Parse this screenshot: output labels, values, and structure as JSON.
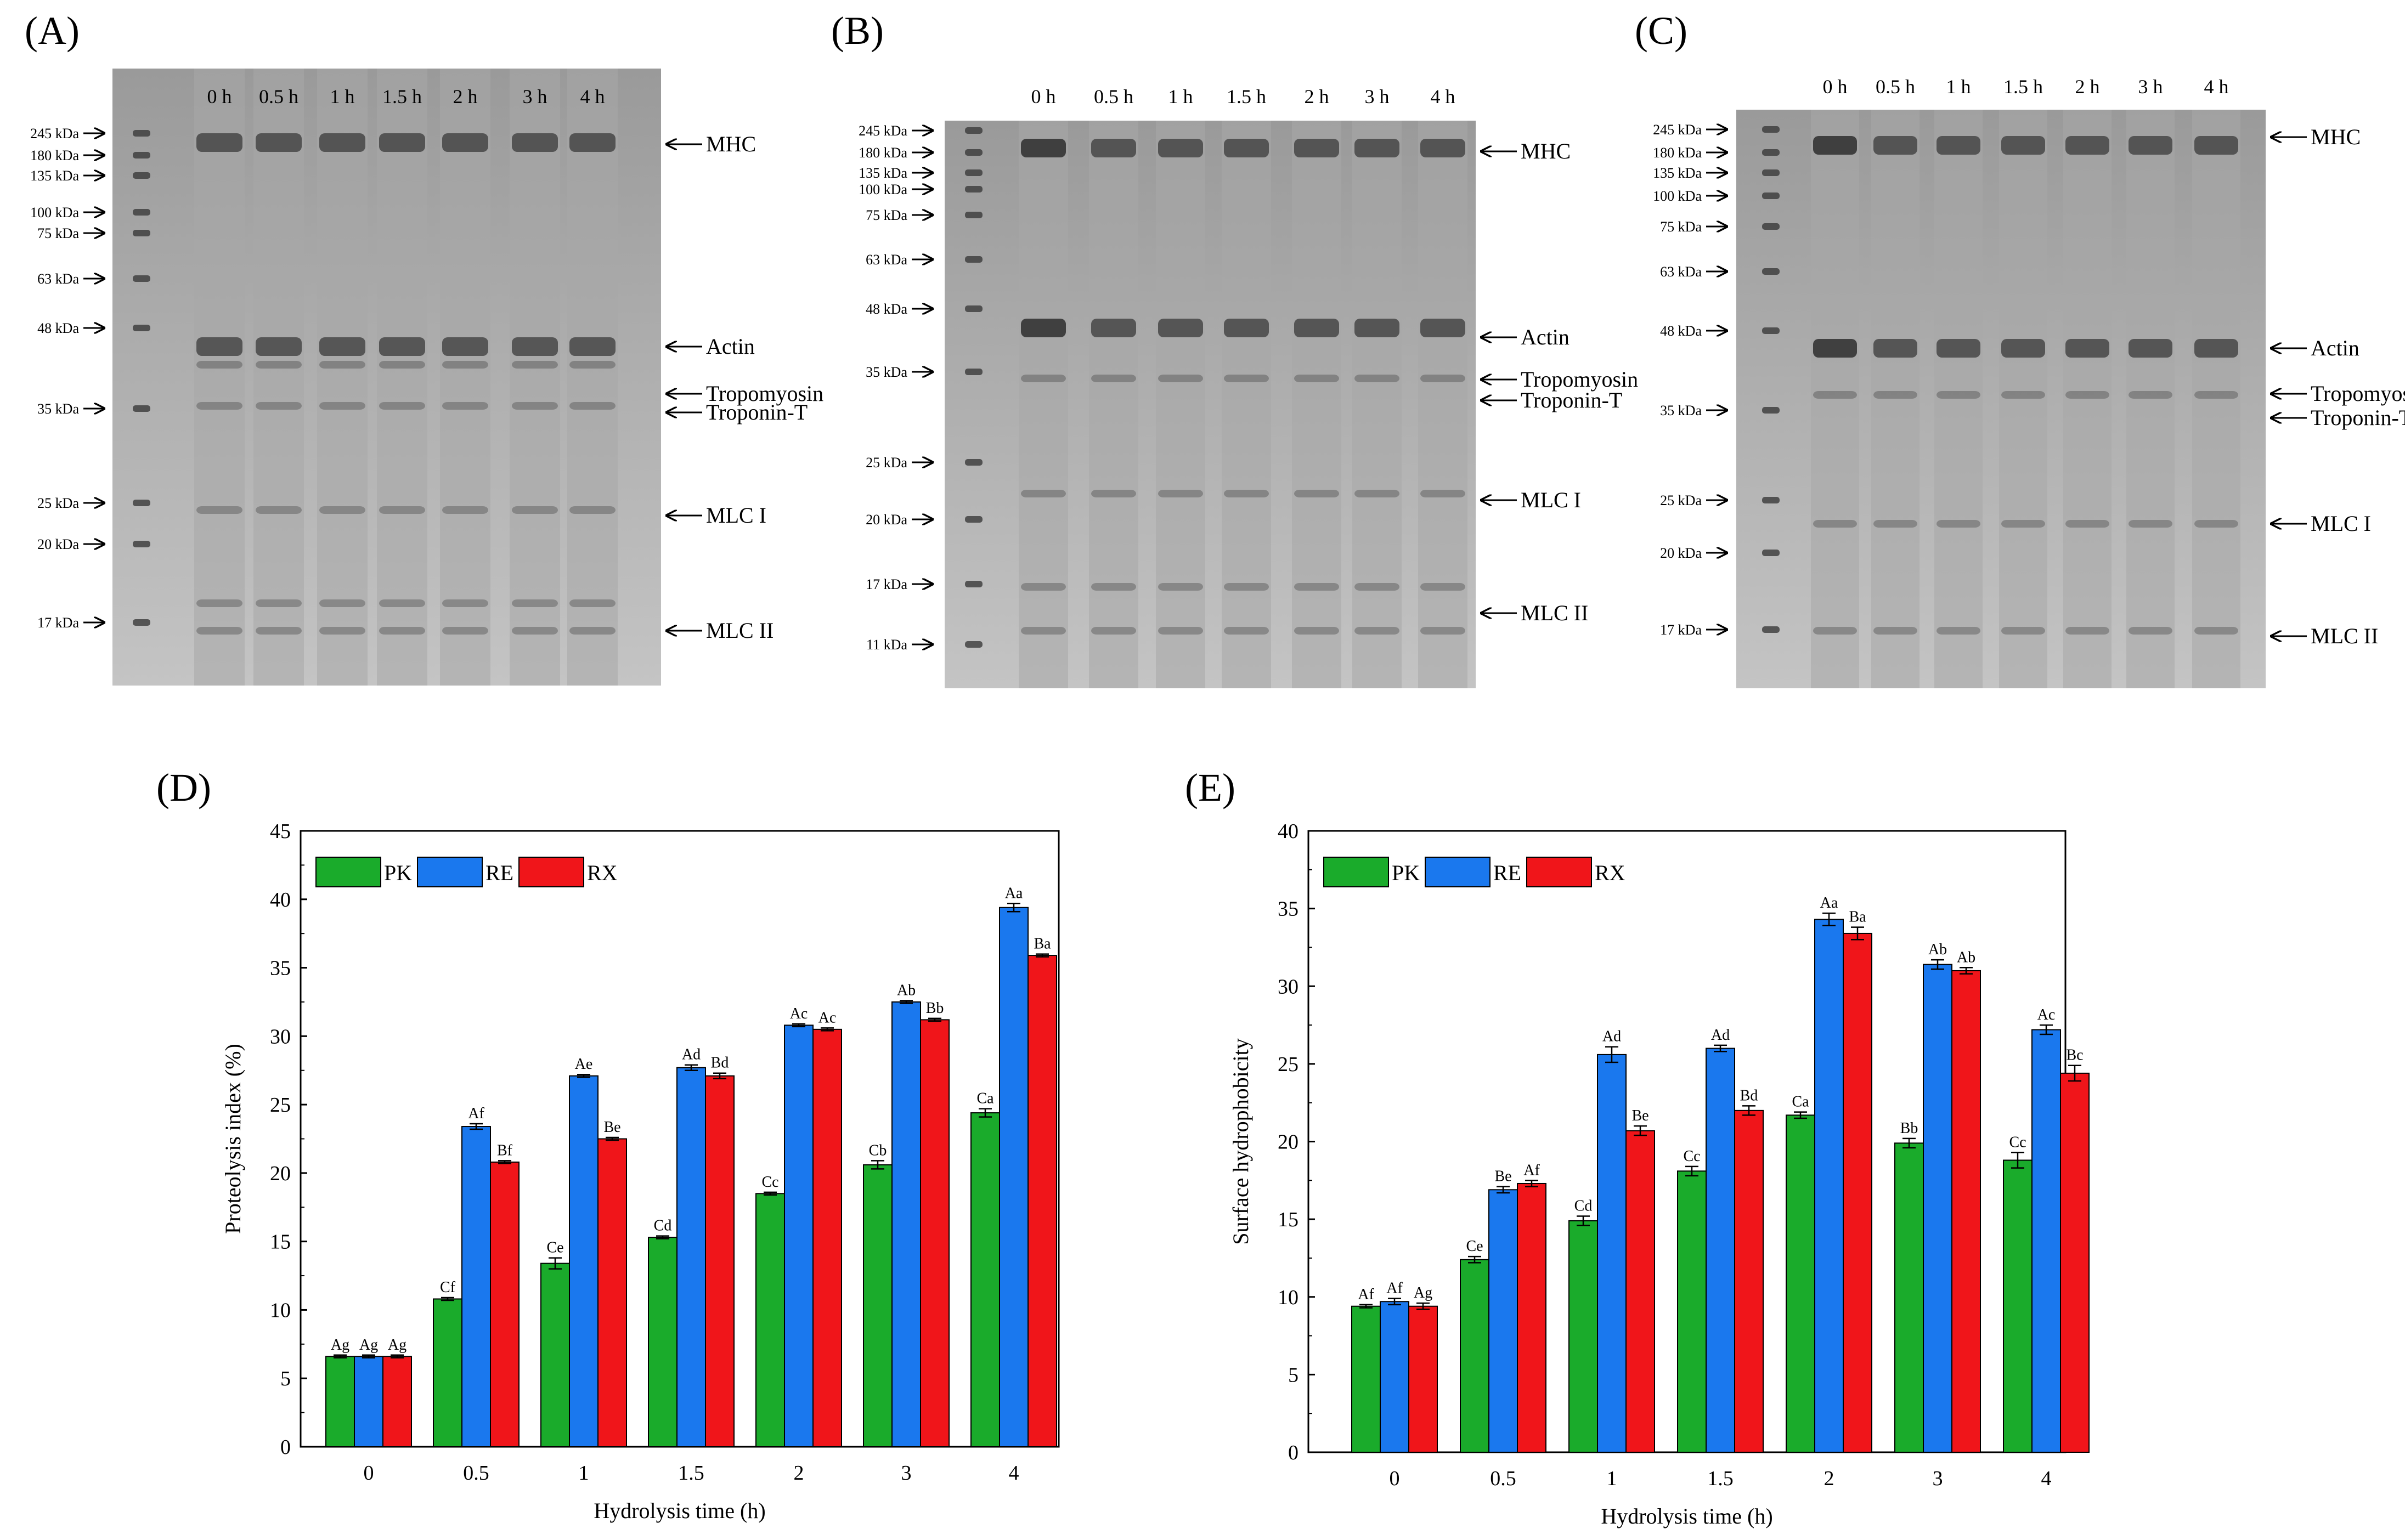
{
  "panels": {
    "A": "(A)",
    "B": "(B)",
    "C": "(C)",
    "D": "(D)",
    "E": "(E)"
  },
  "gels": [
    {
      "id": "A",
      "lanes": [
        "0 h",
        "0.5 h",
        "1 h",
        "1.5 h",
        "2 h",
        "3 h",
        "4 h"
      ],
      "markers": [
        "245 kDa",
        "180 kDa",
        "135 kDa",
        "100 kDa",
        "75 kDa",
        "63 kDa",
        "48 kDa",
        "35 kDa",
        "25 kDa",
        "20 kDa",
        "17 kDa"
      ],
      "proteins": [
        "MHC",
        "Actin",
        "Tropomyosin",
        "Troponin-T",
        "MLC I",
        "MLC II"
      ]
    },
    {
      "id": "B",
      "lanes": [
        "0 h",
        "0.5 h",
        "1 h",
        "1.5 h",
        "2 h",
        "3 h",
        "4 h"
      ],
      "markers": [
        "245 kDa",
        "180 kDa",
        "135 kDa",
        "100 kDa",
        "75 kDa",
        "63 kDa",
        "48 kDa",
        "35 kDa",
        "25 kDa",
        "20 kDa",
        "17 kDa",
        "11 kDa"
      ],
      "proteins": [
        "MHC",
        "Actin",
        "Tropomyosin",
        "Troponin-T",
        "MLC I",
        "MLC II"
      ]
    },
    {
      "id": "C",
      "lanes": [
        "0 h",
        "0.5 h",
        "1 h",
        "1.5 h",
        "2 h",
        "3 h",
        "4 h"
      ],
      "markers": [
        "245 kDa",
        "180 kDa",
        "135 kDa",
        "100 kDa",
        "75 kDa",
        "63 kDa",
        "48 kDa",
        "35 kDa",
        "25 kDa",
        "20 kDa",
        "17 kDa"
      ],
      "proteins": [
        "MHC",
        "Actin",
        "Tropomyosin",
        "Troponin-T",
        "MLC I",
        "MLC II"
      ]
    }
  ],
  "colors": {
    "PK": "#1aab2b",
    "RE": "#1a78ee",
    "RX": "#f0151a"
  },
  "chart_data": [
    {
      "id": "D",
      "type": "bar",
      "title": "",
      "xlabel": "Hydrolysis time (h)",
      "ylabel": "Proteolysis index (%)",
      "ylim": [
        0,
        45
      ],
      "yticks": [
        "0",
        "5",
        "10",
        "15",
        "20",
        "25",
        "30",
        "35",
        "40",
        "45"
      ],
      "categories": [
        "0",
        "0.5",
        "1",
        "1.5",
        "2",
        "3",
        "4"
      ],
      "legend": [
        "PK",
        "RE",
        "RX"
      ],
      "legend_position": "top-left",
      "series": [
        {
          "name": "PK",
          "values": [
            6.6,
            10.8,
            13.4,
            15.3,
            18.5,
            20.6,
            24.4
          ],
          "errors": [
            0.1,
            0.1,
            0.4,
            0.1,
            0.1,
            0.3,
            0.3
          ],
          "labels": [
            "Ag",
            "Cf",
            "Ce",
            "Cd",
            "Cc",
            "Cb",
            "Ca"
          ]
        },
        {
          "name": "RE",
          "values": [
            6.6,
            23.4,
            27.1,
            27.7,
            30.8,
            32.5,
            39.4
          ],
          "errors": [
            0.1,
            0.2,
            0.1,
            0.2,
            0.1,
            0.1,
            0.3
          ],
          "labels": [
            "Ag",
            "Af",
            "Ae",
            "Ad",
            "Ac",
            "Ab",
            "Aa"
          ]
        },
        {
          "name": "RX",
          "values": [
            6.6,
            20.8,
            22.5,
            27.1,
            30.5,
            31.2,
            35.9
          ],
          "errors": [
            0.1,
            0.1,
            0.1,
            0.2,
            0.1,
            0.1,
            0.1
          ],
          "labels": [
            "Ag",
            "Bf",
            "Be",
            "Bd",
            "Ac",
            "Bb",
            "Ba"
          ]
        }
      ]
    },
    {
      "id": "E",
      "type": "bar",
      "title": "",
      "xlabel": "Hydrolysis time (h)",
      "ylabel": "Surface hydrophobicity",
      "ylim": [
        0,
        40
      ],
      "yticks": [
        "0",
        "5",
        "10",
        "15",
        "20",
        "25",
        "30",
        "35",
        "40"
      ],
      "categories": [
        "0",
        "0.5",
        "1",
        "1.5",
        "2",
        "3",
        "4"
      ],
      "legend": [
        "PK",
        "RE",
        "RX"
      ],
      "legend_position": "top-left",
      "series": [
        {
          "name": "PK",
          "values": [
            9.4,
            12.4,
            14.9,
            18.1,
            21.7,
            19.9,
            18.8
          ],
          "errors": [
            0.1,
            0.2,
            0.3,
            0.3,
            0.2,
            0.3,
            0.5
          ],
          "labels": [
            "Af",
            "Ce",
            "Cd",
            "Cc",
            "Ca",
            "Bb",
            "Cc"
          ]
        },
        {
          "name": "RE",
          "values": [
            9.7,
            16.9,
            25.6,
            26.0,
            34.3,
            31.4,
            27.2
          ],
          "errors": [
            0.2,
            0.2,
            0.5,
            0.2,
            0.4,
            0.3,
            0.3
          ],
          "labels": [
            "Af",
            "Be",
            "Ad",
            "Ad",
            "Aa",
            "Ab",
            "Ac"
          ]
        },
        {
          "name": "RX",
          "values": [
            9.4,
            17.3,
            20.7,
            22.0,
            33.4,
            31.0,
            24.4
          ],
          "errors": [
            0.2,
            0.2,
            0.3,
            0.3,
            0.4,
            0.2,
            0.5
          ],
          "labels": [
            "Ag",
            "Af",
            "Be",
            "Bd",
            "Ba",
            "Ab",
            "Bc"
          ]
        }
      ]
    }
  ]
}
